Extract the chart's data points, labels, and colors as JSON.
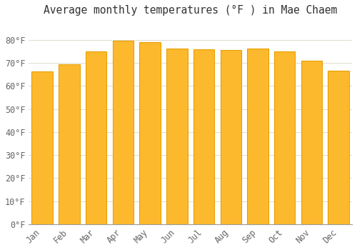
{
  "title": "Average monthly temperatures (°F ) in Mae Chaem",
  "months": [
    "Jan",
    "Feb",
    "Mar",
    "Apr",
    "May",
    "Jun",
    "Jul",
    "Aug",
    "Sep",
    "Oct",
    "Nov",
    "Dec"
  ],
  "values": [
    66.2,
    69.3,
    75.0,
    79.8,
    79.0,
    76.3,
    75.9,
    75.7,
    76.1,
    75.0,
    71.1,
    66.7
  ],
  "bar_color_main": "#FDB92E",
  "bar_color_edge": "#E8A000",
  "ylim": [
    0,
    88
  ],
  "yticks": [
    0,
    10,
    20,
    30,
    40,
    50,
    60,
    70,
    80
  ],
  "ytick_labels": [
    "0°F",
    "10°F",
    "20°F",
    "30°F",
    "40°F",
    "50°F",
    "60°F",
    "70°F",
    "80°F"
  ],
  "bg_color": "#FFFFFF",
  "grid_color": "#DDDDCC",
  "title_fontsize": 10.5,
  "tick_fontsize": 8.5,
  "font_family": "monospace"
}
